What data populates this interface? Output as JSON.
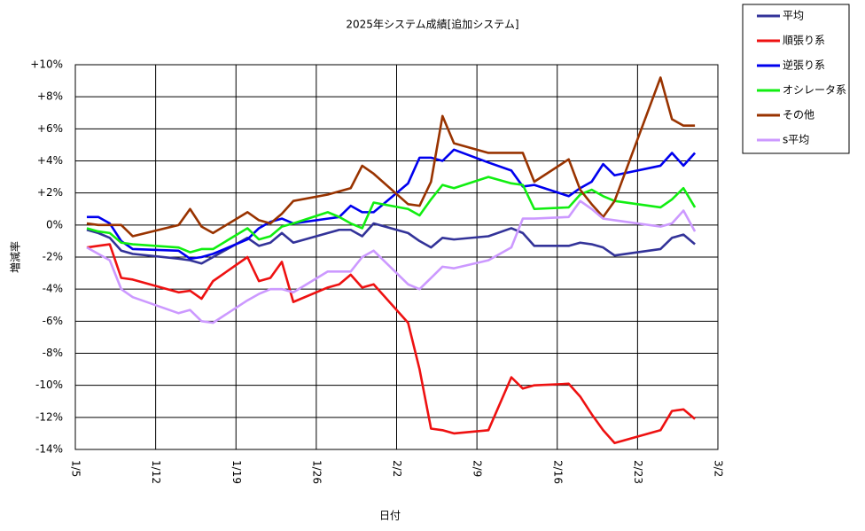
{
  "chart_data": {
    "type": "line",
    "title": "2025年システム成績[追加システム]",
    "xlabel": "日付",
    "ylabel": "増減率",
    "x": [
      1,
      2,
      3,
      4,
      5,
      9,
      10,
      11,
      12,
      15,
      16,
      17,
      18,
      19,
      22,
      23,
      24,
      25,
      26,
      29,
      30,
      31,
      32,
      33,
      36,
      38,
      39,
      40,
      43,
      44,
      45,
      46,
      47,
      51,
      52,
      53,
      54
    ],
    "xlim": [
      0,
      56
    ],
    "xticks": [
      {
        "value": 0,
        "label": "1/5"
      },
      {
        "value": 7,
        "label": "1/12"
      },
      {
        "value": 14,
        "label": "1/19"
      },
      {
        "value": 21,
        "label": "1/26"
      },
      {
        "value": 28,
        "label": "2/2"
      },
      {
        "value": 35,
        "label": "2/9"
      },
      {
        "value": 42,
        "label": "2/16"
      },
      {
        "value": 49,
        "label": "2/23"
      },
      {
        "value": 56,
        "label": "3/2"
      }
    ],
    "ylim": [
      -14,
      10
    ],
    "yticks": [
      {
        "value": -14,
        "label": "-14%"
      },
      {
        "value": -12,
        "label": "-12%"
      },
      {
        "value": -10,
        "label": "-10%"
      },
      {
        "value": -8,
        "label": "-8%"
      },
      {
        "value": -6,
        "label": "-6%"
      },
      {
        "value": -4,
        "label": "-4%"
      },
      {
        "value": -2,
        "label": "-2%"
      },
      {
        "value": 0,
        "label": "0%"
      },
      {
        "value": 2,
        "label": "+2%"
      },
      {
        "value": 4,
        "label": "+4%"
      },
      {
        "value": 6,
        "label": "+6%"
      },
      {
        "value": 8,
        "label": "+8%"
      },
      {
        "value": 10,
        "label": "+10%"
      }
    ],
    "grid": true,
    "series": [
      {
        "name": "平均",
        "color": "#333399",
        "values": [
          -0.3,
          -0.5,
          -0.8,
          -1.6,
          -1.8,
          -2.1,
          -2.2,
          -2.4,
          -2.0,
          -0.8,
          -1.3,
          -1.1,
          -0.5,
          -1.1,
          -0.5,
          -0.3,
          -0.3,
          -0.7,
          0.1,
          -0.5,
          -1.0,
          -1.4,
          -0.8,
          -0.9,
          -0.7,
          -0.2,
          -0.5,
          -1.3,
          -1.3,
          -1.1,
          -1.2,
          -1.4,
          -1.9,
          -1.5,
          -0.8,
          -0.6,
          -1.2
        ]
      },
      {
        "name": "順張り系",
        "color": "#ee1111",
        "values": [
          -1.4,
          -1.3,
          -1.2,
          -3.3,
          -3.4,
          -4.2,
          -4.1,
          -4.6,
          -3.5,
          -2.0,
          -3.5,
          -3.3,
          -2.3,
          -4.8,
          -3.9,
          -3.7,
          -3.1,
          -3.9,
          -3.7,
          -6.1,
          -9.0,
          -12.7,
          -12.8,
          -13.0,
          -12.8,
          -9.5,
          -10.2,
          -10.0,
          -9.9,
          -10.7,
          -11.8,
          -12.8,
          -13.6,
          -12.8,
          -11.6,
          -11.5,
          -12.1
        ]
      },
      {
        "name": "逆張り系",
        "color": "#0000ee",
        "values": [
          0.5,
          0.5,
          0.1,
          -1.0,
          -1.5,
          -1.6,
          -2.1,
          -2.0,
          -1.8,
          -0.9,
          -0.2,
          0.2,
          0.4,
          0.1,
          0.4,
          0.5,
          1.2,
          0.8,
          0.8,
          2.6,
          4.2,
          4.2,
          4.0,
          4.7,
          3.9,
          3.4,
          2.4,
          2.5,
          1.8,
          2.3,
          2.7,
          3.8,
          3.1,
          3.7,
          4.5,
          3.7,
          4.5
        ]
      },
      {
        "name": "オシレータ系",
        "color": "#11ee11",
        "values": [
          -0.2,
          -0.4,
          -0.5,
          -1.1,
          -1.2,
          -1.4,
          -1.7,
          -1.5,
          -1.5,
          -0.2,
          -0.9,
          -0.7,
          -0.1,
          0.1,
          0.8,
          0.5,
          0.1,
          -0.2,
          1.4,
          1.0,
          0.6,
          1.6,
          2.5,
          2.3,
          3.0,
          2.6,
          2.5,
          1.0,
          1.1,
          1.9,
          2.2,
          1.8,
          1.5,
          1.1,
          1.6,
          2.3,
          1.1
        ]
      },
      {
        "name": "その他",
        "color": "#993300",
        "values": [
          0.1,
          0.0,
          0.0,
          0.0,
          -0.7,
          0.0,
          1.0,
          -0.1,
          -0.5,
          0.8,
          0.3,
          0.1,
          0.7,
          1.5,
          1.9,
          2.1,
          2.3,
          3.7,
          3.2,
          1.3,
          1.2,
          2.7,
          6.8,
          5.1,
          4.5,
          4.5,
          4.5,
          2.7,
          4.1,
          2.2,
          1.3,
          0.5,
          1.5,
          9.2,
          6.6,
          6.2,
          6.2
        ]
      },
      {
        "name": "s平均",
        "color": "#cc99ff",
        "values": [
          -1.4,
          -1.8,
          -2.2,
          -4.0,
          -4.5,
          -5.5,
          -5.3,
          -6.0,
          -6.1,
          -4.7,
          -4.3,
          -4.0,
          -4.0,
          -4.2,
          -2.9,
          -2.9,
          -2.9,
          -2.0,
          -1.6,
          -3.7,
          -4.0,
          -3.3,
          -2.6,
          -2.7,
          -2.2,
          -1.4,
          0.4,
          0.4,
          0.5,
          1.5,
          1.0,
          0.4,
          0.3,
          -0.1,
          0.1,
          0.9,
          -0.4
        ]
      }
    ]
  }
}
